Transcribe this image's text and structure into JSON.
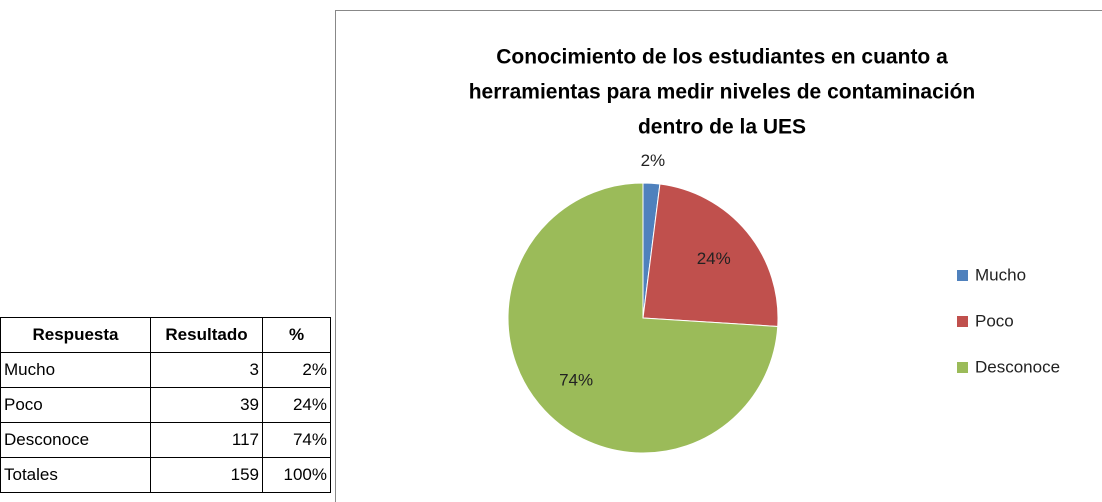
{
  "chart_data": {
    "type": "pie",
    "title": [
      "Conocimiento de los estudiantes en cuanto a",
      "herramientas para medir niveles de contaminación",
      "dentro de la UES"
    ],
    "categories": [
      "Mucho",
      "Poco",
      "Desconoce"
    ],
    "values": [
      2,
      24,
      74
    ],
    "value_labels": [
      "2%",
      "24%",
      "74%"
    ],
    "colors": [
      "#4f81bd",
      "#c0504d",
      "#9bbb59"
    ],
    "legend": "right"
  },
  "table": {
    "header": [
      "Respuesta",
      "Resultado",
      "%"
    ],
    "rows": [
      [
        "Mucho",
        "3",
        "2%"
      ],
      [
        "Poco",
        "39",
        "24%"
      ],
      [
        "Desconoce",
        "117",
        "74%"
      ],
      [
        "Totales",
        "159",
        "100%"
      ]
    ]
  }
}
